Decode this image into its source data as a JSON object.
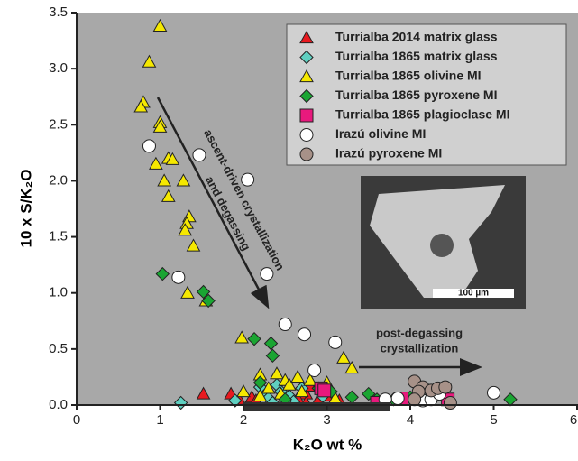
{
  "chart_data": {
    "type": "scatter",
    "xlabel": "K₂O wt %",
    "ylabel": "10 x S/K₂O",
    "xlim": [
      0,
      6
    ],
    "ylim": [
      0,
      3.5
    ],
    "xticks": [
      0,
      1,
      2,
      3,
      4,
      5,
      6
    ],
    "yticks": [
      {
        "value": 0,
        "label": "0.0"
      },
      {
        "value": 0.5,
        "label": "0.5"
      },
      {
        "value": 1,
        "label": "1.0"
      },
      {
        "value": 1.5,
        "label": "1.5"
      },
      {
        "value": 2,
        "label": "2.0"
      },
      {
        "value": 2.5,
        "label": "2.5"
      },
      {
        "value": 3,
        "label": "3.0"
      },
      {
        "value": 3.5,
        "label": "3.5"
      }
    ],
    "annotations": [
      "ascent-driven crystallization",
      "and degassing",
      "post-degassing",
      "crystallization"
    ],
    "inset_scale": "100 µm",
    "series": [
      {
        "name": "Turrialba 2014 matrix glass",
        "color": "#e8191f",
        "marker": "triangle",
        "x": [
          1.52,
          1.85,
          1.95,
          2.1,
          2.15,
          2.75,
          2.8,
          2.9,
          3.0,
          3.15,
          2.65,
          2.75
        ],
        "values": [
          0.1,
          0.1,
          0.05,
          0.07,
          0.04,
          0.1,
          0.17,
          0.05,
          0.08,
          0.04,
          0.06,
          0.02
        ]
      },
      {
        "name": "Turrialba 1865 matrix glass",
        "color": "#5fcfc0",
        "marker": "diamond",
        "x": [
          1.25,
          1.9,
          2.25,
          2.3,
          2.4,
          2.45,
          2.55,
          2.6,
          2.35,
          2.7,
          2.95,
          2.2,
          2.5
        ],
        "values": [
          0.02,
          0.04,
          0.12,
          0.06,
          0.18,
          0.12,
          0.08,
          0.03,
          0.02,
          0.15,
          0.08,
          0.16,
          0.02
        ]
      },
      {
        "name": "Turrialba 1865 olivine MI",
        "color": "#f5e800",
        "marker": "triangle",
        "x": [
          1.0,
          0.87,
          0.8,
          0.77,
          1.0,
          1.0,
          0.95,
          1.1,
          1.15,
          1.05,
          1.28,
          1.1,
          1.35,
          1.32,
          1.3,
          1.4,
          1.33,
          1.55,
          1.98,
          2.2,
          2.4,
          2.5,
          2.55,
          2.65,
          2.8,
          3.0,
          3.2,
          3.3,
          2.3,
          2.2,
          2.7,
          3.1,
          2.45,
          2.0
        ],
        "values": [
          3.38,
          3.06,
          2.7,
          2.66,
          2.52,
          2.48,
          2.15,
          2.2,
          2.19,
          2.0,
          2.0,
          1.86,
          1.68,
          1.62,
          1.56,
          1.42,
          1.0,
          0.93,
          0.6,
          0.27,
          0.28,
          0.22,
          0.18,
          0.25,
          0.22,
          0.2,
          0.42,
          0.33,
          0.15,
          0.08,
          0.12,
          0.06,
          0.1,
          0.12
        ]
      },
      {
        "name": "Turrialba 1865 pyroxene MI",
        "color": "#1aa532",
        "marker": "diamond",
        "x": [
          1.03,
          1.52,
          1.58,
          2.13,
          2.33,
          2.35,
          2.2,
          2.9,
          3.05,
          3.5,
          3.6,
          3.8,
          4.0,
          4.2,
          5.2,
          2.5,
          3.3
        ],
        "values": [
          1.17,
          1.01,
          0.93,
          0.59,
          0.55,
          0.44,
          0.2,
          0.15,
          0.12,
          0.1,
          0.05,
          0.05,
          0.07,
          0.05,
          0.05,
          0.05,
          0.07
        ]
      },
      {
        "name": "Turrialba 1865 plagioclase MI",
        "color": "#e8197d",
        "marker": "square",
        "x": [
          2.93,
          2.97,
          3.6,
          3.9,
          4.45
        ],
        "values": [
          0.15,
          0.13,
          0.02,
          0.06,
          0.05
        ]
      },
      {
        "name": "Irazú olivine MI",
        "color": "#ffffff",
        "marker": "circle",
        "x": [
          0.87,
          1.47,
          2.05,
          1.22,
          2.28,
          2.5,
          2.73,
          3.1,
          2.85,
          3.85,
          4.15,
          4.25,
          4.35,
          5.0,
          3.7
        ],
        "values": [
          2.31,
          2.23,
          2.01,
          1.14,
          1.17,
          0.72,
          0.63,
          0.56,
          0.31,
          0.06,
          0.04,
          0.05,
          0.1,
          0.11,
          0.05
        ]
      },
      {
        "name": "Irazú pyroxene MI",
        "color": "#a79188",
        "marker": "circle",
        "x": [
          4.05,
          4.15,
          4.1,
          4.25,
          4.33,
          4.42,
          4.05,
          4.48
        ],
        "values": [
          0.21,
          0.16,
          0.12,
          0.13,
          0.15,
          0.16,
          0.05,
          0.02
        ]
      }
    ]
  }
}
